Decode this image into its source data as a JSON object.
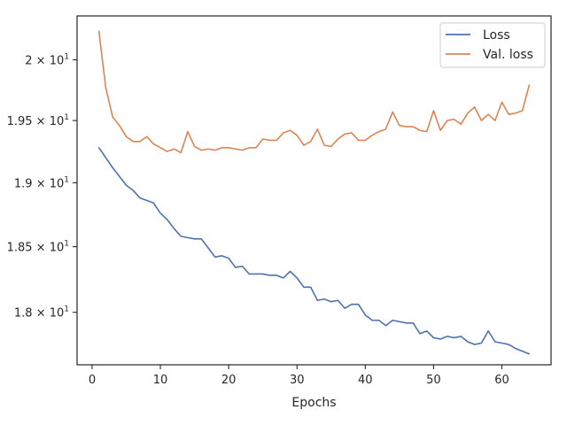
{
  "chart_data": {
    "type": "line",
    "title": "",
    "xlabel": "Epochs",
    "ylabel": "",
    "xlim": [
      -2.2,
      67.2
    ],
    "ylim": [
      17.61,
      20.37
    ],
    "y_scale": "log",
    "grid": false,
    "legend_position": "top-right",
    "x_ticks": [
      {
        "value": 0,
        "label": "0"
      },
      {
        "value": 10,
        "label": "10"
      },
      {
        "value": 20,
        "label": "20"
      },
      {
        "value": 30,
        "label": "30"
      },
      {
        "value": 40,
        "label": "40"
      },
      {
        "value": 50,
        "label": "50"
      },
      {
        "value": 60,
        "label": "60"
      }
    ],
    "y_ticks": [
      {
        "value": 18.0,
        "mantissa": "1.8",
        "base": "10",
        "exp": "1"
      },
      {
        "value": 18.5,
        "mantissa": "1.85",
        "base": "10",
        "exp": "1"
      },
      {
        "value": 19.0,
        "mantissa": "1.9",
        "base": "10",
        "exp": "1"
      },
      {
        "value": 19.5,
        "mantissa": "1.95",
        "base": "10",
        "exp": "1"
      },
      {
        "value": 20.0,
        "mantissa": "2",
        "base": "10",
        "exp": "1"
      }
    ],
    "series": [
      {
        "name": "Loss",
        "color": "#4c72b0",
        "x": [
          1,
          2,
          3,
          4,
          5,
          6,
          7,
          8,
          9,
          10,
          11,
          12,
          13,
          14,
          15,
          16,
          17,
          18,
          19,
          20,
          21,
          22,
          23,
          24,
          25,
          26,
          27,
          28,
          29,
          30,
          31,
          32,
          33,
          34,
          35,
          36,
          37,
          38,
          39,
          40,
          41,
          42,
          43,
          44,
          45,
          46,
          47,
          48,
          49,
          50,
          51,
          52,
          53,
          54,
          55,
          56,
          57,
          58,
          59,
          60,
          61,
          62,
          63,
          64
        ],
        "values": [
          19.28,
          19.2,
          19.12,
          19.05,
          18.98,
          18.94,
          18.88,
          18.86,
          18.84,
          18.76,
          18.71,
          18.64,
          18.58,
          18.57,
          18.56,
          18.56,
          18.49,
          18.42,
          18.43,
          18.41,
          18.34,
          18.35,
          18.29,
          18.29,
          18.29,
          18.28,
          18.28,
          18.26,
          18.31,
          18.26,
          18.19,
          18.19,
          18.09,
          18.1,
          18.08,
          18.09,
          18.03,
          18.06,
          18.06,
          17.98,
          17.94,
          17.94,
          17.9,
          17.94,
          17.93,
          17.92,
          17.92,
          17.84,
          17.86,
          17.81,
          17.8,
          17.82,
          17.81,
          17.82,
          17.78,
          17.76,
          17.77,
          17.86,
          17.78,
          17.77,
          17.76,
          17.73,
          17.71,
          17.69
        ]
      },
      {
        "name": "Val. loss",
        "color": "#dd8452",
        "x": [
          1,
          2,
          3,
          4,
          5,
          6,
          7,
          8,
          9,
          10,
          11,
          12,
          13,
          14,
          15,
          16,
          17,
          18,
          19,
          20,
          21,
          22,
          23,
          24,
          25,
          26,
          27,
          28,
          29,
          30,
          31,
          32,
          33,
          34,
          35,
          36,
          37,
          38,
          39,
          40,
          41,
          42,
          43,
          44,
          45,
          46,
          47,
          48,
          49,
          50,
          51,
          52,
          53,
          54,
          55,
          56,
          57,
          58,
          59,
          60,
          61,
          62,
          63,
          64
        ],
        "values": [
          20.24,
          19.77,
          19.53,
          19.46,
          19.37,
          19.33,
          19.33,
          19.37,
          19.31,
          19.28,
          19.25,
          19.27,
          19.24,
          19.41,
          19.29,
          19.26,
          19.27,
          19.26,
          19.28,
          19.28,
          19.27,
          19.26,
          19.28,
          19.28,
          19.35,
          19.34,
          19.34,
          19.4,
          19.42,
          19.38,
          19.3,
          19.33,
          19.43,
          19.3,
          19.29,
          19.35,
          19.39,
          19.4,
          19.34,
          19.34,
          19.38,
          19.41,
          19.43,
          19.57,
          19.46,
          19.45,
          19.45,
          19.42,
          19.41,
          19.58,
          19.42,
          19.5,
          19.51,
          19.47,
          19.56,
          19.61,
          19.5,
          19.55,
          19.5,
          19.65,
          19.55,
          19.56,
          19.58,
          19.79
        ]
      }
    ]
  }
}
